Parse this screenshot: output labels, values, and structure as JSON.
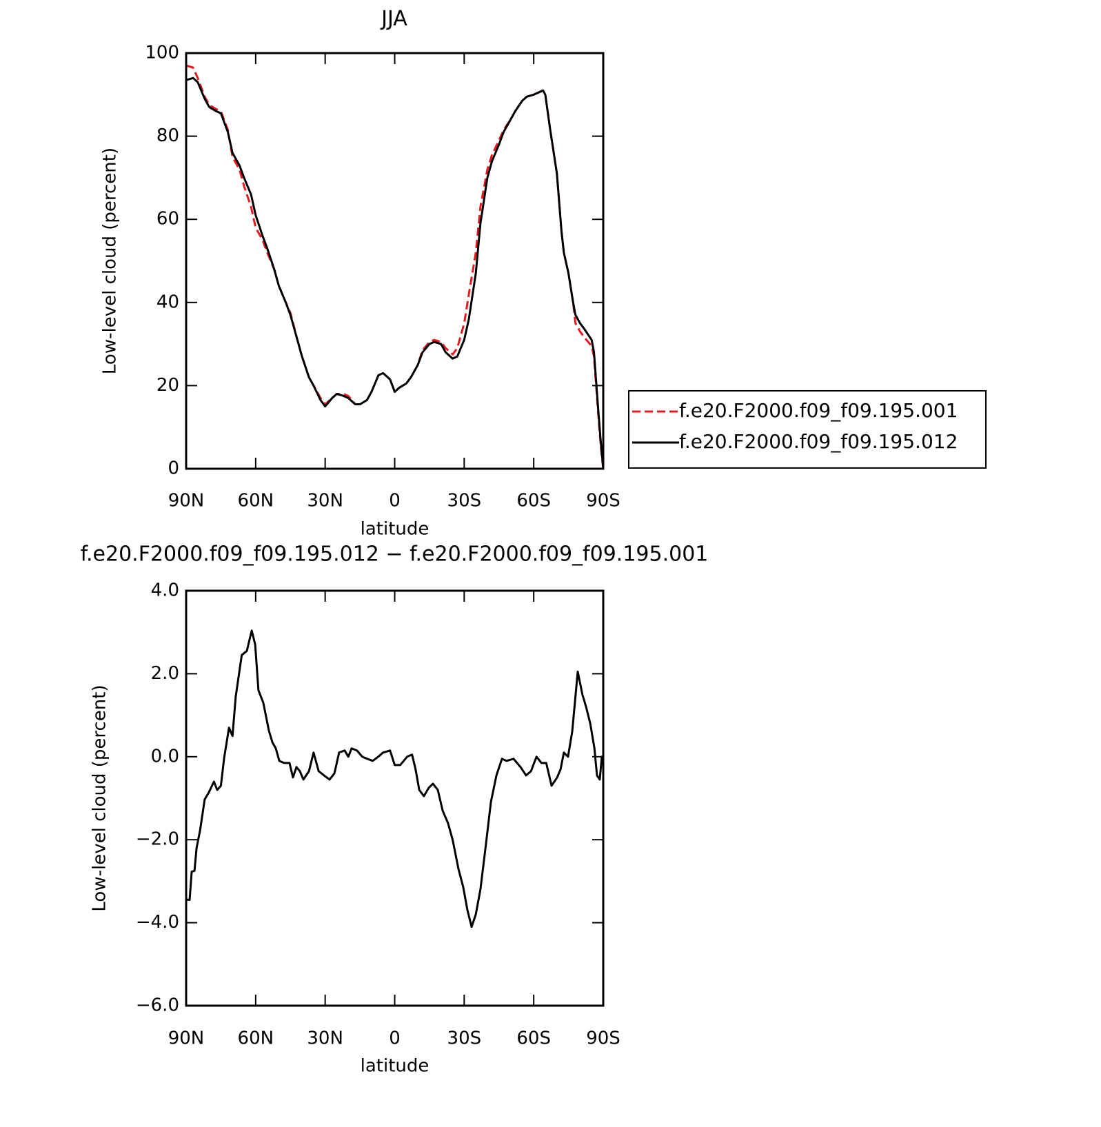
{
  "chart_data": [
    {
      "type": "line",
      "title": "JJA",
      "x_label": "latitude",
      "y_label": "Low-level cloud (percent)",
      "xlim": [
        90,
        -90
      ],
      "xticks": [
        {
          "value": 90,
          "label": "90N"
        },
        {
          "value": 60,
          "label": "60N"
        },
        {
          "value": 30,
          "label": "30N"
        },
        0,
        {
          "value": -30,
          "label": "30S"
        },
        {
          "value": -60,
          "label": "60S"
        },
        {
          "value": -90,
          "label": "90S"
        }
      ],
      "ylim": [
        0,
        100
      ],
      "yticks": [
        0,
        20,
        40,
        60,
        80,
        100
      ],
      "legend": "outside right",
      "x": [
        90,
        87,
        85,
        82,
        80,
        77,
        75,
        72,
        70,
        67,
        65,
        62,
        60,
        57,
        55,
        52,
        50,
        47,
        45,
        42,
        40,
        37,
        35,
        32,
        30,
        27,
        25,
        22,
        20,
        17,
        15,
        12,
        10,
        7,
        5,
        2,
        0,
        -2,
        -5,
        -7,
        -10,
        -12,
        -15,
        -17,
        -20,
        -22,
        -25,
        -27,
        -30,
        -32,
        -35,
        -37,
        -40,
        -42,
        -45,
        -47,
        -50,
        -52,
        -55,
        -57,
        -60,
        -62,
        -64,
        -65,
        -67,
        -70,
        -72,
        -73,
        -75,
        -77,
        -78,
        -80,
        -82,
        -85,
        -86,
        -88,
        -89,
        -90
      ],
      "series": [
        {
          "name": "f.e20.F2000.f09_f09.195.001",
          "color": "#e8191c",
          "dashed": true,
          "values": [
            97,
            96.5,
            94,
            89.5,
            87.5,
            86.5,
            86,
            81.5,
            75,
            72,
            68,
            63,
            58,
            55,
            52,
            48,
            44,
            40,
            37.5,
            31,
            27,
            22,
            20,
            17,
            15.5,
            17,
            18,
            18,
            17.5,
            15.5,
            15.5,
            16.5,
            18.5,
            22.5,
            23,
            21.5,
            18.5,
            19.5,
            20.5,
            22,
            25,
            28.5,
            30.5,
            31,
            30.5,
            29,
            27.5,
            29,
            35,
            42,
            52,
            63,
            72,
            75.5,
            79,
            81.5,
            84,
            86,
            88.5,
            89.5,
            90,
            90.5,
            91,
            90,
            82,
            71,
            57,
            52,
            47,
            40,
            35,
            33,
            31.5,
            29.5,
            27,
            12,
            5,
            0
          ]
        },
        {
          "name": "f.e20.F2000.f09_f09.195.012",
          "color": "#000000",
          "dashed": false,
          "values": [
            93.5,
            94,
            93,
            89,
            87,
            86,
            85.5,
            81,
            76,
            73,
            70,
            66,
            61,
            56,
            53,
            48,
            44,
            40,
            37,
            31,
            27,
            22,
            20,
            16.5,
            15,
            17,
            18,
            17.5,
            17,
            15.5,
            15.5,
            16.5,
            18.5,
            22.5,
            23,
            21.5,
            18.5,
            19.5,
            20.5,
            22,
            25,
            28,
            30,
            30.5,
            30,
            28,
            26.5,
            27,
            31,
            36,
            47,
            59,
            70,
            74,
            78,
            81,
            84,
            86,
            88.5,
            89.5,
            90,
            90.5,
            91,
            90,
            82,
            71,
            57,
            52,
            47,
            40,
            37,
            35,
            33.5,
            31,
            28,
            13,
            6,
            0
          ]
        }
      ]
    },
    {
      "type": "line",
      "title": "f.e20.F2000.f09_f09.195.012 − f.e20.F2000.f09_f09.195.001",
      "x_label": "latitude",
      "y_label": "Low-level cloud (percent)",
      "xlim": [
        90,
        -90
      ],
      "xticks": [
        {
          "value": 90,
          "label": "90N"
        },
        {
          "value": 60,
          "label": "60N"
        },
        {
          "value": 30,
          "label": "30N"
        },
        0,
        {
          "value": -30,
          "label": "30S"
        },
        {
          "value": -60,
          "label": "60S"
        },
        {
          "value": -90,
          "label": "90S"
        }
      ],
      "ylim": [
        -6,
        4
      ],
      "yticks": [
        {
          "value": -6,
          "label": "−6.0"
        },
        {
          "value": -4,
          "label": "−4.0"
        },
        {
          "value": -2,
          "label": "−2.0"
        },
        {
          "value": 0,
          "label": "0.0"
        },
        {
          "value": 2,
          "label": "2.0"
        },
        {
          "value": 4,
          "label": "4.0"
        }
      ],
      "color": "#000000",
      "x": [
        90,
        88.5,
        87.6,
        86.4,
        85.5,
        84,
        82,
        80.2,
        78,
        76.6,
        75,
        73.6,
        71.5,
        70,
        68.6,
        66,
        63.8,
        61.7,
        60.2,
        58.8,
        56.7,
        54.3,
        52.8,
        51.3,
        49.8,
        47.7,
        45.4,
        43.9,
        42.4,
        40.9,
        39.4,
        37,
        35,
        32.8,
        30.5,
        28.1,
        26,
        24,
        21.6,
        20,
        18.6,
        16.3,
        14,
        11.9,
        9.5,
        7.1,
        5,
        2,
        0,
        -2.4,
        -5.4,
        -7.5,
        -9,
        -10.6,
        -12.6,
        -14.7,
        -16.5,
        -18.6,
        -20.7,
        -23,
        -25,
        -27.5,
        -29.6,
        -31.4,
        -33.2,
        -35,
        -37,
        -39.4,
        -41.5,
        -43.9,
        -46.3,
        -48.3,
        -51.3,
        -54.3,
        -56.7,
        -58.8,
        -61.2,
        -63.3,
        -65.4,
        -67.7,
        -70.1,
        -71.6,
        -73,
        -74.8,
        -76.6,
        -79,
        -81,
        -82.6,
        -84.4,
        -86.2,
        -87.3,
        -88.5,
        -89.4,
        -90
      ],
      "values": [
        -3.44,
        -3.45,
        -2.77,
        -2.75,
        -2.2,
        -1.78,
        -1.03,
        -0.86,
        -0.6,
        -0.8,
        -0.7,
        -0.03,
        0.7,
        0.5,
        1.45,
        2.45,
        2.55,
        3.04,
        2.7,
        1.6,
        1.3,
        0.63,
        0.35,
        0.2,
        -0.1,
        -0.15,
        -0.15,
        -0.5,
        -0.25,
        -0.35,
        -0.55,
        -0.35,
        0.1,
        -0.35,
        -0.45,
        -0.55,
        -0.4,
        0.1,
        0.15,
        0,
        0.2,
        0.15,
        0,
        -0.05,
        -0.1,
        0,
        0.1,
        0.15,
        -0.2,
        -0.2,
        0,
        0.05,
        -0.3,
        -0.8,
        -0.95,
        -0.75,
        -0.65,
        -0.8,
        -1.3,
        -1.6,
        -2.0,
        -2.7,
        -3.15,
        -3.7,
        -4.1,
        -3.8,
        -3.2,
        -2.1,
        -1.1,
        -0.45,
        -0.05,
        -0.1,
        -0.05,
        -0.25,
        -0.45,
        -0.35,
        0,
        -0.15,
        -0.15,
        -0.7,
        -0.5,
        -0.3,
        0.1,
        0,
        0.6,
        2.05,
        1.5,
        1.2,
        0.8,
        0.2,
        -0.45,
        -0.55,
        0,
        0
      ]
    }
  ]
}
